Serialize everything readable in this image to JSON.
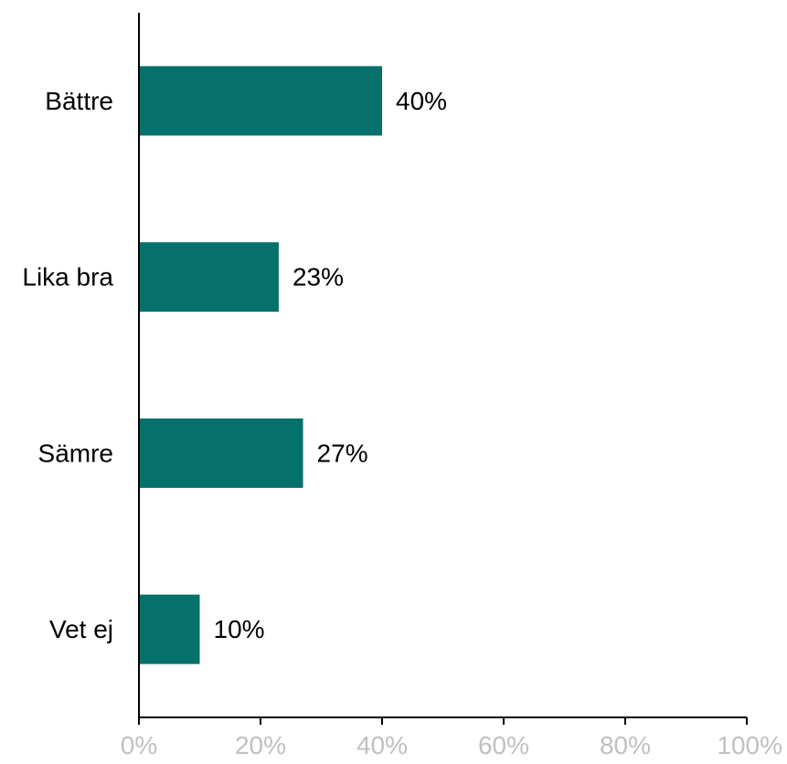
{
  "chart_data": {
    "type": "bar",
    "orientation": "horizontal",
    "categories": [
      "Bättre",
      "Lika bra",
      "Sämre",
      "Vet ej"
    ],
    "values": [
      40,
      23,
      27,
      10
    ],
    "value_labels": [
      "40%",
      "23%",
      "27%",
      "10%"
    ],
    "xlim": [
      0,
      100
    ],
    "x_ticks": [
      0,
      20,
      40,
      60,
      80,
      100
    ],
    "x_tick_labels": [
      "0%",
      "20%",
      "40%",
      "60%",
      "80%",
      "100%"
    ],
    "grid": false,
    "legend": "none",
    "colors": {
      "bar": "#06706B",
      "axis": "#000000",
      "tick_label": "#C0C0C0"
    }
  }
}
